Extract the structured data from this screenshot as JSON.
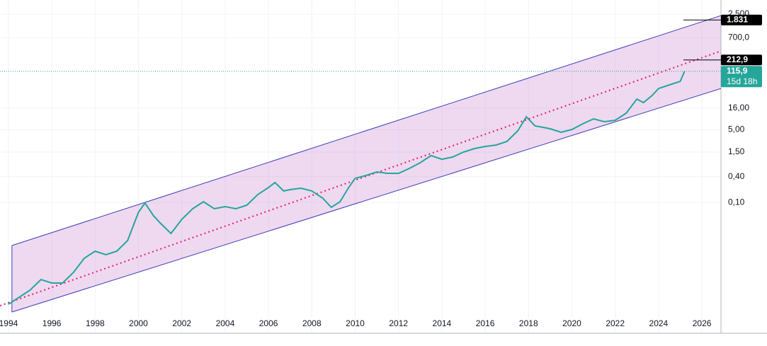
{
  "chart_data": {
    "type": "line",
    "log_scale": true,
    "grid": true,
    "color": "#26a69a",
    "x": [
      1994.0,
      1994.5,
      1995.0,
      1995.5,
      1996.0,
      1996.5,
      1997.0,
      1997.5,
      1998.0,
      1998.5,
      1999.0,
      1999.5,
      2000.0,
      2000.3,
      2000.7,
      2001.0,
      2001.5,
      2002.0,
      2002.5,
      2003.0,
      2003.5,
      2004.0,
      2004.5,
      2005.0,
      2005.5,
      2006.0,
      2006.3,
      2006.7,
      2007.0,
      2007.5,
      2008.0,
      2008.5,
      2008.9,
      2009.3,
      2009.7,
      2010.0,
      2010.5,
      2011.0,
      2011.5,
      2012.0,
      2012.5,
      2013.0,
      2013.5,
      2014.0,
      2014.5,
      2015.0,
      2015.5,
      2016.0,
      2016.5,
      2017.0,
      2017.5,
      2017.9,
      2018.3,
      2018.7,
      2019.0,
      2019.5,
      2020.0,
      2020.5,
      2021.0,
      2021.5,
      2022.0,
      2022.5,
      2023.0,
      2023.3,
      2023.7,
      2024.0,
      2024.5,
      2025.0,
      2025.2
    ],
    "values": [
      0.000418,
      0.000611,
      0.000895,
      0.00158,
      0.00131,
      0.00131,
      0.00232,
      0.00497,
      0.00726,
      0.006,
      0.00726,
      0.0129,
      0.0589,
      0.0966,
      0.0486,
      0.0333,
      0.0188,
      0.0403,
      0.0713,
      0.104,
      0.0713,
      0.0798,
      0.0713,
      0.0861,
      0.152,
      0.223,
      0.291,
      0.185,
      0.199,
      0.215,
      0.185,
      0.126,
      0.0769,
      0.104,
      0.223,
      0.366,
      0.426,
      0.515,
      0.478,
      0.478,
      0.624,
      0.845,
      1.24,
      1.02,
      1.15,
      1.5,
      1.81,
      2.03,
      2.19,
      2.65,
      4.69,
      10.0,
      6.11,
      5.66,
      5.25,
      4.34,
      5.06,
      6.85,
      8.95,
      7.69,
      8.3,
      12.1,
      26.0,
      21.5,
      31.4,
      45.9,
      55.6,
      67.3,
      115.9
    ],
    "xlim": [
      1993.61,
      2026.88
    ],
    "xticks": [
      1994,
      1996,
      1998,
      2000,
      2002,
      2004,
      2006,
      2008,
      2010,
      2012,
      2014,
      2016,
      2018,
      2020,
      2022,
      2024,
      2026
    ],
    "ylim": [
      9.12e-05,
      5360
    ],
    "yticks": [
      {
        "value": 2500,
        "label": "2.500"
      },
      {
        "value": 700,
        "label": "700,0"
      },
      {
        "value": 16,
        "label": "16,00"
      },
      {
        "value": 5,
        "label": "5,00"
      },
      {
        "value": 1.5,
        "label": "1,50"
      },
      {
        "value": 0.4,
        "label": "0,40"
      },
      {
        "value": 0.1,
        "label": "0,10"
      }
    ],
    "channel": {
      "fill": "rgba(186,104,200,0.25)",
      "line_color": "#3d3db5",
      "mid_color": "#e91e63",
      "upper": {
        "x": [
          1994.16,
          2026.88
        ],
        "values": [
          0.00984,
          2317
        ]
      },
      "middle": {
        "x": [
          1993.61,
          2026.88
        ],
        "values": [
          0.000387,
          345
        ]
      },
      "lower": {
        "x": [
          1994.16,
          2026.88
        ],
        "values": [
          0.000275,
          45.9
        ]
      }
    },
    "price_labels": [
      {
        "value": 1831,
        "label": "1.831",
        "color": "#000000"
      },
      {
        "value": 212.9,
        "label": "212,9",
        "color": "#000000"
      },
      {
        "value": 115.9,
        "label": "115,9",
        "sub": "15d 18h",
        "color": "#26a69a"
      }
    ]
  }
}
